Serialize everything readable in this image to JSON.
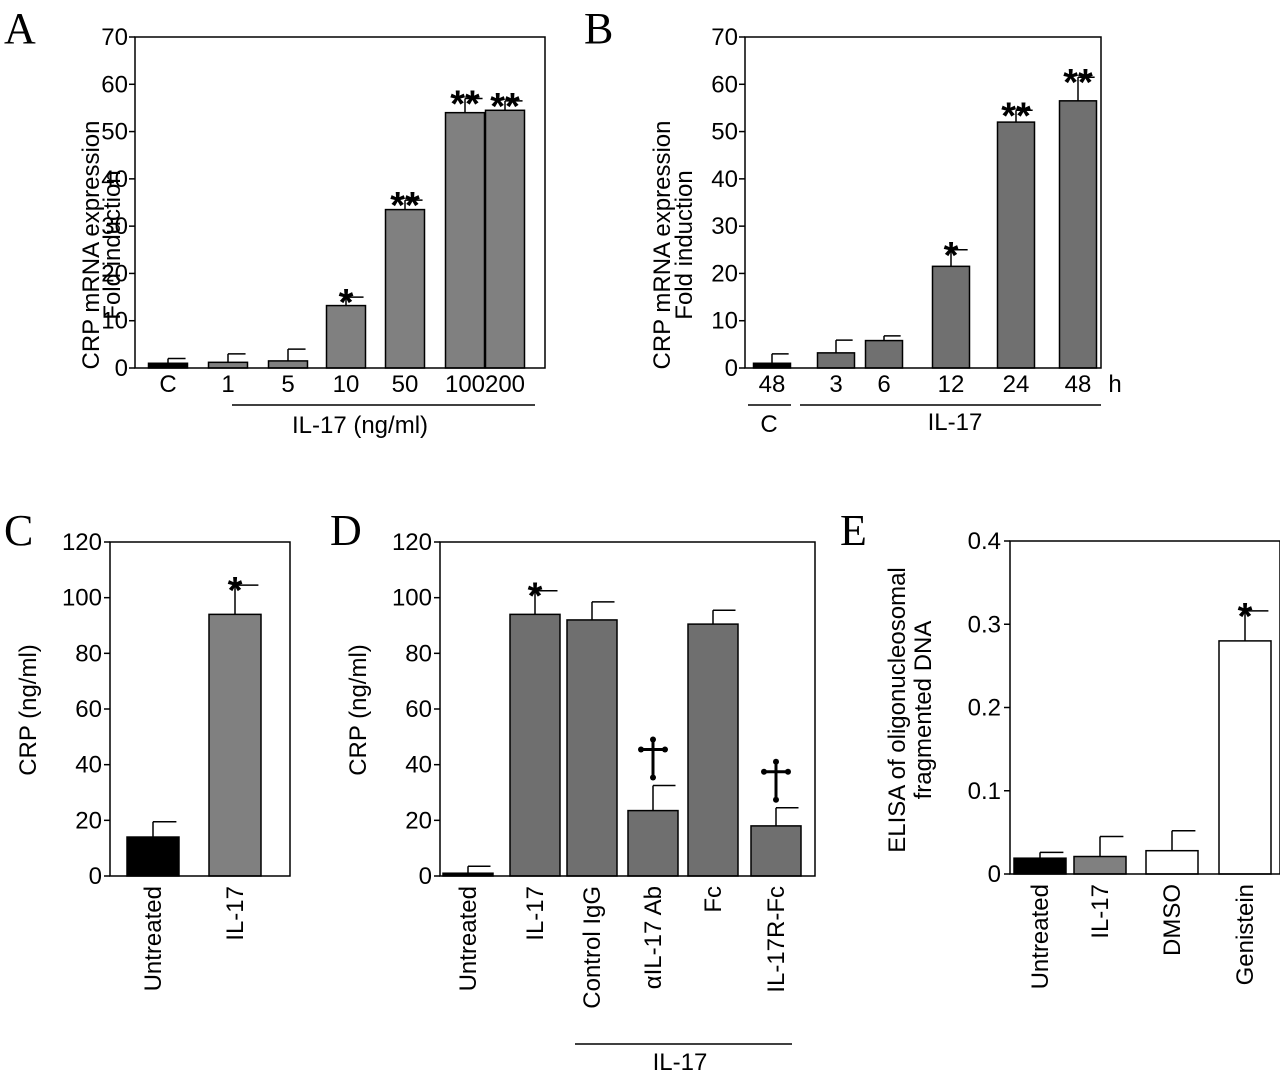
{
  "chart_data": [
    {
      "panel": "A",
      "type": "bar",
      "ylabel": [
        "CRP mRNA expression",
        "Fold induction"
      ],
      "ylim": [
        0,
        70
      ],
      "yticks": [
        0,
        10,
        20,
        30,
        40,
        50,
        60,
        70
      ],
      "categories": [
        "C",
        "1",
        "5",
        "10",
        "50",
        "100",
        "200"
      ],
      "values": [
        1,
        1.2,
        1.5,
        13.2,
        33.5,
        54,
        54.5
      ],
      "errors": [
        1,
        1.8,
        2.5,
        1.8,
        2,
        3,
        2
      ],
      "colors": [
        "#000000",
        "#808080",
        "#808080",
        "#808080",
        "#808080",
        "#808080",
        "#808080"
      ],
      "annotations": [
        "",
        "",
        "",
        "*",
        "**",
        "**",
        "**"
      ],
      "group_label": "IL-17 (ng/ml)"
    },
    {
      "panel": "B",
      "type": "bar",
      "ylabel": [
        "CRP mRNA expression",
        "Fold induction"
      ],
      "ylim": [
        0,
        70
      ],
      "yticks": [
        0,
        10,
        20,
        30,
        40,
        50,
        60,
        70
      ],
      "categories": [
        "48",
        "3",
        "6",
        "12",
        "24",
        "48"
      ],
      "values": [
        1,
        3.2,
        5.8,
        21.5,
        52,
        56.5
      ],
      "errors": [
        2,
        2.7,
        1,
        3.5,
        2.5,
        5
      ],
      "colors": [
        "#000000",
        "#707070",
        "#707070",
        "#707070",
        "#707070",
        "#707070"
      ],
      "annotations": [
        "",
        "",
        "",
        "*",
        "**",
        "**"
      ],
      "unit_label": "h",
      "control_label": "C",
      "group_label": "IL-17"
    },
    {
      "panel": "C",
      "type": "bar",
      "ylabel": "CRP (ng/ml)",
      "ylim": [
        0,
        120
      ],
      "yticks": [
        0,
        20,
        40,
        60,
        80,
        100,
        120
      ],
      "categories": [
        "Untreated",
        "IL-17"
      ],
      "values": [
        14,
        94
      ],
      "errors": [
        5.5,
        10.5
      ],
      "colors": [
        "#000000",
        "#808080"
      ],
      "annotations": [
        "",
        "*"
      ]
    },
    {
      "panel": "D",
      "type": "bar",
      "ylabel": "CRP (ng/ml)",
      "ylim": [
        0,
        120
      ],
      "yticks": [
        0,
        20,
        40,
        60,
        80,
        100,
        120
      ],
      "categories": [
        "Untreated",
        "IL-17",
        "Control IgG",
        "αIL-17 Ab",
        "Fc",
        "IL-17R-Fc"
      ],
      "values": [
        1,
        94,
        92,
        23.5,
        90.5,
        18
      ],
      "errors": [
        2.5,
        8.5,
        6.5,
        9,
        5,
        6.5
      ],
      "colors": [
        "#000000",
        "#6f6f6f",
        "#6f6f6f",
        "#6f6f6f",
        "#6f6f6f",
        "#6f6f6f"
      ],
      "annotations": [
        "",
        "*",
        "",
        "†",
        "",
        "†"
      ],
      "group_label": "IL-17"
    },
    {
      "panel": "E",
      "type": "bar",
      "ylabel": [
        "ELISA of oligonucleosomal",
        "fragmented DNA"
      ],
      "ylim": [
        0,
        0.4
      ],
      "yticks": [
        0,
        0.1,
        0.2,
        0.3,
        0.4
      ],
      "ytick_labels": [
        "0",
        "0.1",
        "0.2",
        "0.3",
        "0.4"
      ],
      "categories": [
        "Untreated",
        "IL-17",
        "DMSO",
        "Genistein"
      ],
      "values": [
        0.019,
        0.021,
        0.028,
        0.28
      ],
      "errors": [
        0.007,
        0.024,
        0.024,
        0.036
      ],
      "colors": [
        "#000000",
        "#808080",
        "#ffffff",
        "#ffffff"
      ],
      "annotations": [
        "",
        "",
        "",
        "*"
      ]
    }
  ]
}
